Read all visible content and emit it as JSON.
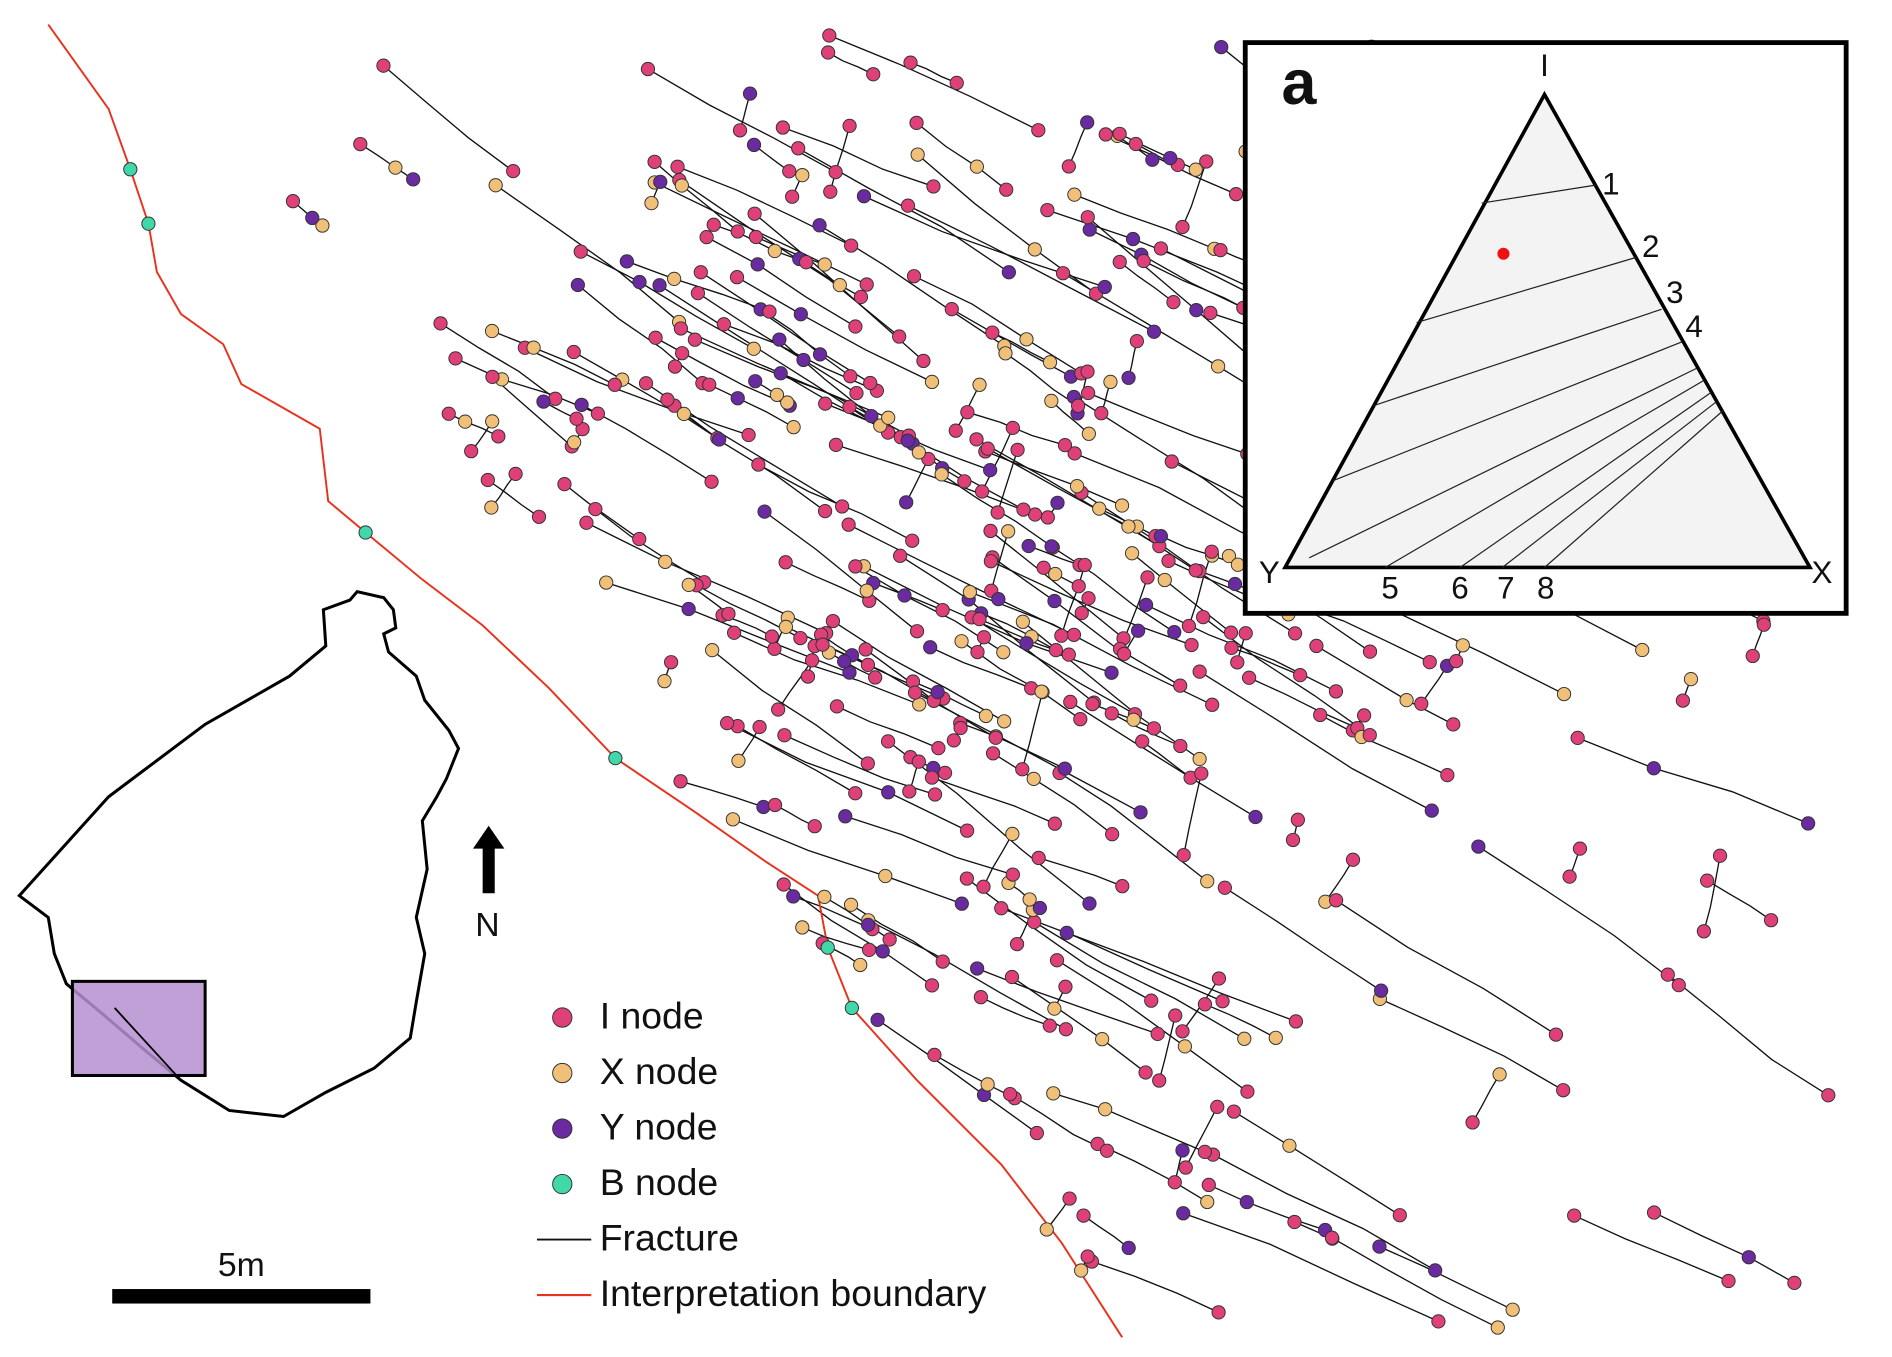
{
  "panel_label": "a",
  "ternary": {
    "vertices": [
      "I",
      "Y",
      "X"
    ],
    "contours": [
      "1",
      "2",
      "3",
      "4",
      "5",
      "6",
      "7",
      "8"
    ]
  },
  "legend": [
    "I node",
    "X node",
    "Y node",
    "B node",
    "Fracture",
    "Interpretation boundary"
  ],
  "north": "N",
  "scale_bar": "5m"
}
